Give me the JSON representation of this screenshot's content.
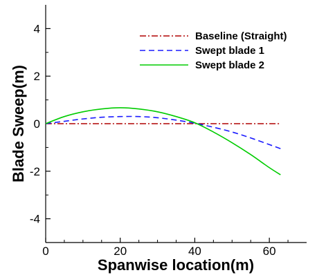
{
  "chart_data": {
    "type": "line",
    "title": "",
    "xlabel": "Spanwise location(m)",
    "ylabel": "Blade Sweep(m)",
    "xlim": [
      0,
      70
    ],
    "ylim": [
      -5,
      5
    ],
    "xticks": [
      0,
      20,
      40,
      60
    ],
    "yticks": [
      -4,
      -2,
      0,
      2,
      4
    ],
    "grid": false,
    "legend_position": "top-right",
    "series": [
      {
        "name": "Baseline (Straight)",
        "color": "#b00000",
        "style": "dashdot",
        "x": [
          0,
          63
        ],
        "y": [
          0,
          0
        ]
      },
      {
        "name": "Swept blade 1",
        "color": "#1a1aff",
        "style": "dashed",
        "x": [
          0,
          5,
          10,
          15,
          20,
          25,
          30,
          35,
          40,
          45,
          50,
          55,
          60,
          63
        ],
        "y": [
          0,
          0.1,
          0.2,
          0.27,
          0.3,
          0.3,
          0.25,
          0.15,
          0.02,
          -0.15,
          -0.35,
          -0.6,
          -0.88,
          -1.05
        ]
      },
      {
        "name": "Swept blade 2",
        "color": "#00cc00",
        "style": "solid",
        "x": [
          0,
          5,
          10,
          15,
          20,
          25,
          30,
          35,
          40,
          45,
          50,
          55,
          60,
          63
        ],
        "y": [
          0,
          0.3,
          0.5,
          0.62,
          0.67,
          0.62,
          0.5,
          0.3,
          0.04,
          -0.35,
          -0.8,
          -1.3,
          -1.85,
          -2.15
        ]
      }
    ]
  }
}
